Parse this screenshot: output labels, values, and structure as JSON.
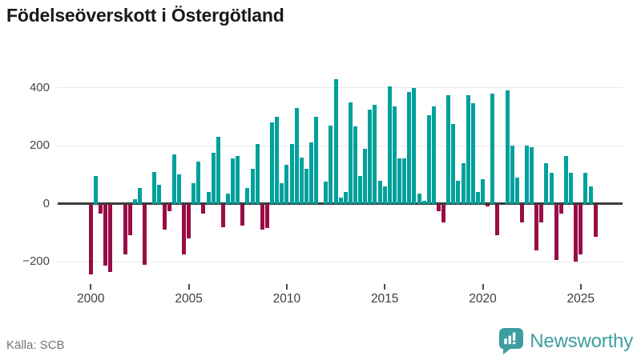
{
  "title": "Födelseöverskott i Östergötland",
  "source": "Källa: SCB",
  "branding": {
    "name": "Newsworthy"
  },
  "colors": {
    "positive_bar": "#00a19c",
    "negative_bar": "#9a0c46",
    "zero_line": "#3c3c3c",
    "gridline": "#e7e7e7",
    "title_text": "#1a1a1a",
    "axis_text": "#454545",
    "source_text": "#70757a",
    "brand_teal": "#3e9da0",
    "background": "#ffffff"
  },
  "chart_data": {
    "type": "bar",
    "title": "Födelseöverskott i Östergötland",
    "frequency": "quarterly",
    "period": "2000Q1-2025Q4",
    "xlabel": "",
    "ylabel": "",
    "ylim": [
      -260,
      450
    ],
    "grid": "horizontal",
    "legend": "none",
    "y_axis": {
      "ticks": [
        {
          "label": "400",
          "value": 400
        },
        {
          "label": "200",
          "value": 200
        },
        {
          "label": "0",
          "value": 0
        },
        {
          "label": "−200",
          "value": -200
        }
      ]
    },
    "x_axis": {
      "ticks": [
        {
          "label": "2000",
          "year": 2000
        },
        {
          "label": "2005",
          "year": 2005
        },
        {
          "label": "2010",
          "year": 2010
        },
        {
          "label": "2015",
          "year": 2015
        },
        {
          "label": "2020",
          "year": 2020
        },
        {
          "label": "2025",
          "year": 2025
        }
      ]
    },
    "series": [
      {
        "name": "Födelseöverskott",
        "years": [
          {
            "year": 2000,
            "q": [
              -245,
              95,
              -35,
              -215
            ]
          },
          {
            "year": 2001,
            "q": [
              -235,
              0,
              0,
              -175
            ]
          },
          {
            "year": 2002,
            "q": [
              -110,
              15,
              55,
              -210
            ]
          },
          {
            "year": 2003,
            "q": [
              0,
              110,
              65,
              -90
            ]
          },
          {
            "year": 2004,
            "q": [
              -25,
              170,
              100,
              -175
            ]
          },
          {
            "year": 2005,
            "q": [
              -120,
              70,
              145,
              -35
            ]
          },
          {
            "year": 2006,
            "q": [
              40,
              175,
              230,
              -80
            ]
          },
          {
            "year": 2007,
            "q": [
              35,
              155,
              165,
              -75
            ]
          },
          {
            "year": 2008,
            "q": [
              55,
              120,
              205,
              -90
            ]
          },
          {
            "year": 2009,
            "q": [
              -85,
              280,
              300,
              70
            ]
          },
          {
            "year": 2010,
            "q": [
              135,
              205,
              330,
              160
            ]
          },
          {
            "year": 2011,
            "q": [
              120,
              210,
              300,
              0
            ]
          },
          {
            "year": 2012,
            "q": [
              75,
              270,
              430,
              20
            ]
          },
          {
            "year": 2013,
            "q": [
              40,
              350,
              265,
              95
            ]
          },
          {
            "year": 2014,
            "q": [
              190,
              325,
              340,
              80
            ]
          },
          {
            "year": 2015,
            "q": [
              60,
              405,
              335,
              155
            ]
          },
          {
            "year": 2016,
            "q": [
              155,
              385,
              400,
              35
            ]
          },
          {
            "year": 2017,
            "q": [
              10,
              305,
              335,
              -25
            ]
          },
          {
            "year": 2018,
            "q": [
              -65,
              375,
              275,
              80
            ]
          },
          {
            "year": 2019,
            "q": [
              140,
              375,
              345,
              40
            ]
          },
          {
            "year": 2020,
            "q": [
              85,
              -10,
              380,
              -110
            ]
          },
          {
            "year": 2021,
            "q": [
              0,
              390,
              200,
              90
            ]
          },
          {
            "year": 2022,
            "q": [
              -65,
              200,
              195,
              -160
            ]
          },
          {
            "year": 2023,
            "q": [
              -65,
              140,
              105,
              -195
            ]
          },
          {
            "year": 2024,
            "q": [
              -35,
              165,
              105,
              -200
            ]
          },
          {
            "year": 2025,
            "q": [
              -175,
              105,
              60,
              -115
            ]
          }
        ]
      }
    ]
  }
}
